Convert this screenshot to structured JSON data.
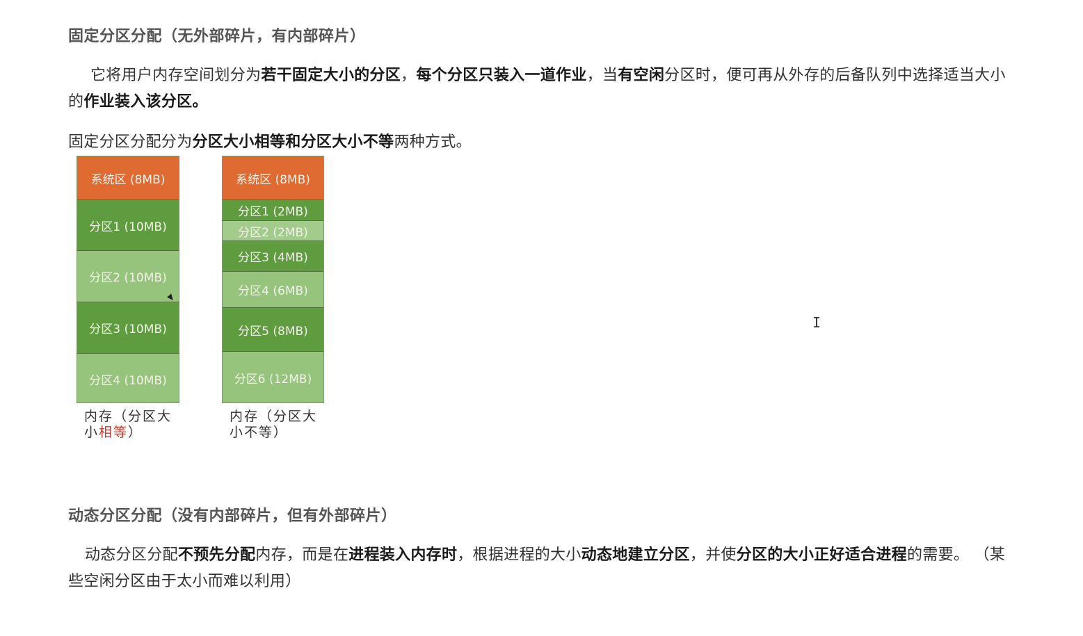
{
  "section1": {
    "heading": "固定分区分配（无外部碎片，有内部碎片）",
    "para1": [
      {
        "text": "它将用户内存空间划分为",
        "bold": false
      },
      {
        "text": "若干固定大小的分区",
        "bold": true
      },
      {
        "text": "，",
        "bold": false
      },
      {
        "text": "每个分区只装入一道作业",
        "bold": true
      },
      {
        "text": "，当",
        "bold": false
      },
      {
        "text": "有空闲",
        "bold": true
      },
      {
        "text": "分区时，便可再从外存的后备队列中选择适当大小的",
        "bold": false
      },
      {
        "text": "作业装入该分区。",
        "bold": true
      }
    ],
    "para2": [
      {
        "text": "固定分区分配分为",
        "bold": false
      },
      {
        "text": "分区大小相等和分区大小不等",
        "bold": true
      },
      {
        "text": "两种方式。",
        "bold": false
      }
    ]
  },
  "diagram": {
    "equal": {
      "caption_line1": "内存（分区大",
      "caption_line2_prefix": "小",
      "caption_line2_red": "相等",
      "caption_line2_suffix": "）",
      "blocks": [
        {
          "label": "系统区 (8MB)",
          "color": "#e06b32"
        },
        {
          "label": "分区1 (10MB)",
          "color": "#5e9c3f"
        },
        {
          "label": "分区2 (10MB)",
          "color": "#96c47d"
        },
        {
          "label": "分区3 (10MB)",
          "color": "#5e9c3f"
        },
        {
          "label": "分区4 (10MB)",
          "color": "#96c47d"
        }
      ]
    },
    "unequal": {
      "caption_line1": "内存（分区大",
      "caption_line2": "小不等）",
      "blocks": [
        {
          "label": "系统区 (8MB)",
          "color": "#e06b32"
        },
        {
          "label": "分区1 (2MB)",
          "color": "#5e9c3f"
        },
        {
          "label": "分区2 (2MB)",
          "color": "#a3cb8c"
        },
        {
          "label": "分区3 (4MB)",
          "color": "#5e9c3f"
        },
        {
          "label": "分区4 (6MB)",
          "color": "#96c47d"
        },
        {
          "label": "分区5 (8MB)",
          "color": "#5e9c3f"
        },
        {
          "label": "分区6 (12MB)",
          "color": "#96c47d"
        }
      ]
    }
  },
  "section2": {
    "heading": "动态分区分配（没有内部碎片，但有外部碎片）",
    "para1": [
      {
        "text": "动态分区分配",
        "bold": false
      },
      {
        "text": "不预先分配",
        "bold": true
      },
      {
        "text": "内存，而是在",
        "bold": false
      },
      {
        "text": "进程装入内存时",
        "bold": true
      },
      {
        "text": "，根据进程的大小",
        "bold": false
      },
      {
        "text": "动态地建立分区",
        "bold": true
      },
      {
        "text": "，并使",
        "bold": false
      },
      {
        "text": "分区的大小正好适合进程",
        "bold": true
      },
      {
        "text": "的需要。 （某些空闲分区由于太小而难以利用）",
        "bold": false
      }
    ]
  }
}
